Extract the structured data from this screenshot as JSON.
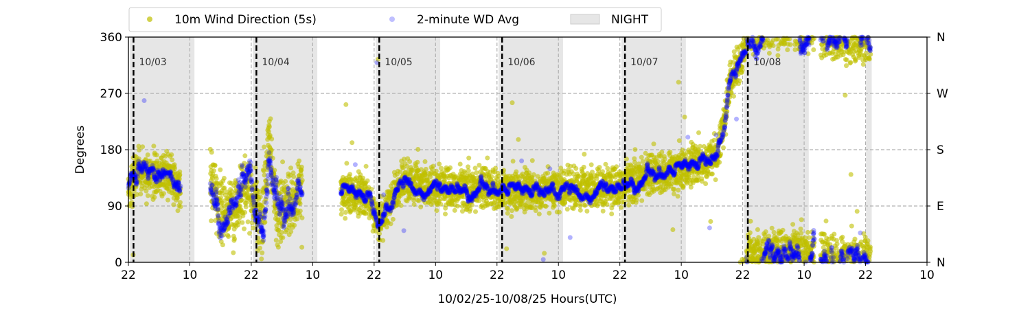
{
  "chart_data": {
    "type": "scatter",
    "xlabel": "10/02/25-10/08/25  Hours(UTC)",
    "ylabel": "Degrees",
    "xlim_hours": [
      0,
      156
    ],
    "ylim": [
      0,
      360
    ],
    "x_tick_labels": [
      "22",
      "10",
      "22",
      "10",
      "22",
      "10",
      "22",
      "10",
      "22",
      "10",
      "22",
      "10",
      "22",
      "10"
    ],
    "x_tick_hours": [
      0,
      12,
      24,
      36,
      48,
      60,
      72,
      84,
      96,
      108,
      120,
      132,
      144,
      156
    ],
    "y_ticks": [
      0,
      90,
      180,
      270,
      360
    ],
    "y_right_labels": [
      "N",
      "E",
      "S",
      "W",
      "N"
    ],
    "grid": true,
    "legend_position": "top",
    "legend": [
      {
        "name": "10m Wind Direction (5s)",
        "color": "#bfbf00"
      },
      {
        "name": "2-minute WD Avg",
        "color": "#0000ff"
      },
      {
        "name": "NIGHT",
        "color": "#e6e6e6"
      }
    ],
    "day_markers": [
      {
        "hour": 1,
        "label": "10/03"
      },
      {
        "hour": 25,
        "label": "10/04"
      },
      {
        "hour": 49,
        "label": "10/05"
      },
      {
        "hour": 73,
        "label": "10/06"
      },
      {
        "hour": 97,
        "label": "10/07"
      },
      {
        "hour": 121,
        "label": "10/08"
      }
    ],
    "night_periods_hours": [
      [
        0.3,
        12.9
      ],
      [
        24.3,
        36.9
      ],
      [
        48.3,
        60.9
      ],
      [
        72.3,
        84.9
      ],
      [
        96.3,
        108.9
      ],
      [
        120.3,
        132.9
      ],
      [
        144.1,
        145.2
      ]
    ],
    "series_trend_keyframes": [
      {
        "hours": [
          0,
          10.2
        ],
        "points": [
          [
            0,
            115
          ],
          [
            2,
            150
          ],
          [
            5,
            140
          ],
          [
            8,
            135
          ],
          [
            10.2,
            120
          ]
        ],
        "spread_5s": 30,
        "spread_avg": 14
      },
      {
        "hours": [
          16,
          34
        ],
        "points": [
          [
            16,
            130
          ],
          [
            18,
            80
          ],
          [
            21,
            90
          ],
          [
            23,
            130
          ],
          [
            24,
            110
          ],
          [
            26,
            60
          ],
          [
            27.5,
            200
          ],
          [
            29,
            70
          ],
          [
            31,
            90
          ],
          [
            34,
            120
          ]
        ],
        "spread_5s": 45,
        "spread_avg": 28
      },
      {
        "hours": [
          41.5,
          120.7
        ],
        "points": [
          [
            41.5,
            115
          ],
          [
            47,
            105
          ],
          [
            49,
            60
          ],
          [
            52,
            110
          ],
          [
            54,
            130
          ],
          [
            60,
            120
          ],
          [
            80,
            115
          ],
          [
            95,
            120
          ],
          [
            100,
            135
          ],
          [
            108,
            150
          ],
          [
            115,
            170
          ],
          [
            116.5,
            230
          ],
          [
            117.5,
            290
          ],
          [
            118.5,
            300
          ],
          [
            120.7,
            350
          ]
        ],
        "spread_5s": 28,
        "spread_avg": 10
      },
      {
        "hours": [
          120.7,
          134
        ],
        "points": [
          [
            120.7,
            370
          ],
          [
            126,
            375
          ],
          [
            130,
            380
          ],
          [
            134,
            370
          ]
        ],
        "spread_5s": 30,
        "spread_avg": 20
      },
      {
        "hours": [
          135.2,
          145
        ],
        "points": [
          [
            135.2,
            365
          ],
          [
            140,
            362
          ],
          [
            145,
            360
          ]
        ],
        "spread_5s": 35,
        "spread_avg": 22
      }
    ]
  }
}
